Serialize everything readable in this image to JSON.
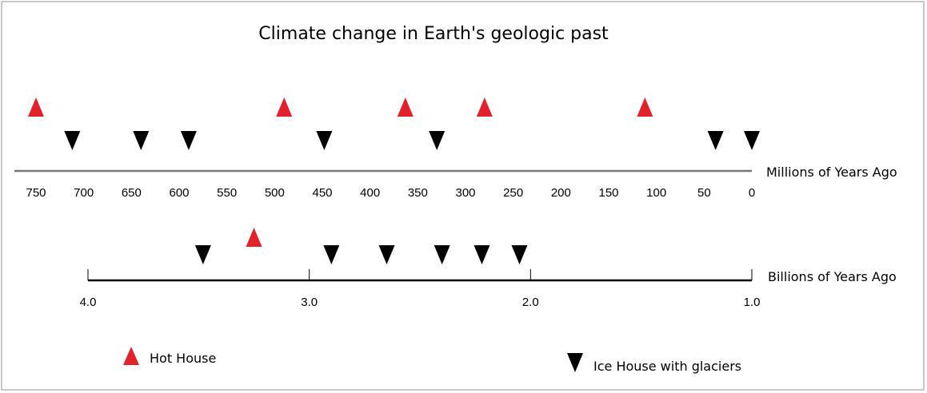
{
  "title": "Climate change in Earth's geologic past",
  "colors": {
    "hot": "#e2212b",
    "ice": "#000000",
    "axis_ma": "#777777",
    "axis_ga": "#000000"
  },
  "chart_data": [
    {
      "type": "timeline",
      "axis_label": "Millions of Years Ago",
      "unit": "Ma",
      "range": [
        760,
        0
      ],
      "tick_labels": [
        "750",
        "700",
        "650",
        "600",
        "550",
        "500",
        "450",
        "400",
        "350",
        "300",
        "250",
        "200",
        "150",
        "100",
        "50",
        "0"
      ],
      "tick_values": [
        750,
        700,
        650,
        600,
        550,
        500,
        450,
        400,
        350,
        300,
        250,
        200,
        150,
        100,
        50,
        0
      ],
      "hot_house": [
        750,
        490,
        363,
        280,
        112
      ],
      "ice_house": [
        712,
        640,
        590,
        448,
        330,
        38,
        0
      ]
    },
    {
      "type": "timeline",
      "axis_label": "Billions of Years Ago",
      "unit": "Ga",
      "range": [
        4.0,
        1.0
      ],
      "tick_labels": [
        "4.0",
        "3.0",
        "2.0",
        "1.0"
      ],
      "tick_values": [
        4.0,
        3.0,
        2.0,
        1.0
      ],
      "hot_house": [
        3.25
      ],
      "ice_house": [
        3.48,
        2.9,
        2.65,
        2.4,
        2.22,
        2.05
      ]
    }
  ],
  "legend": {
    "hot_label": "Hot House",
    "ice_label": "Ice House with glaciers"
  }
}
